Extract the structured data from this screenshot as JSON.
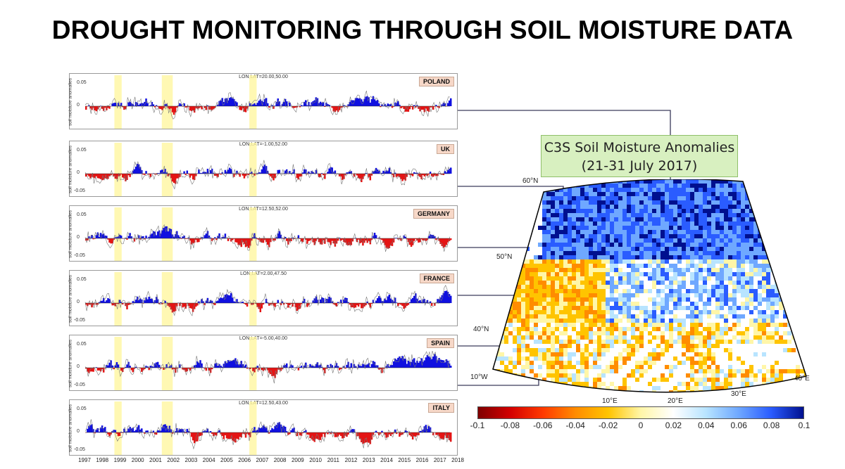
{
  "title": "DROUGHT MONITORING THROUGH SOIL MOISTURE DATA",
  "y_axis_label": "soil moisture anomalies",
  "panels": [
    {
      "country": "POLAND",
      "coords": "LON,LAT=20.00,50.00",
      "yticks": [
        "0.05",
        "0"
      ]
    },
    {
      "country": "UK",
      "coords": "LON,LAT=-1.00,52.00",
      "yticks": [
        "0.05",
        "0",
        "-0.05"
      ]
    },
    {
      "country": "GERMANY",
      "coords": "LON,LAT=12.50,52.00",
      "yticks": [
        "0.05",
        "0",
        "-0.05"
      ]
    },
    {
      "country": "FRANCE",
      "coords": "LON,LAT=2.00,47.50",
      "yticks": [
        "0.05",
        "0",
        "-0.05"
      ]
    },
    {
      "country": "SPAIN",
      "coords": "LON,LAT=-5.00,40.00",
      "yticks": [
        "0.05",
        "0",
        "-0.05"
      ]
    },
    {
      "country": "ITALY",
      "coords": "LON,LAT=12.50,43.00",
      "yticks": [
        "0.05",
        "0",
        "-0.05"
      ]
    }
  ],
  "years": [
    "1997",
    "1998",
    "1999",
    "2000",
    "2001",
    "2002",
    "2003",
    "2004",
    "2005",
    "2006",
    "2007",
    "2008",
    "2009",
    "2010",
    "2011",
    "2012",
    "2013",
    "2014",
    "2015",
    "2016",
    "2017",
    "2018"
  ],
  "map": {
    "title_line1": "C3S Soil Moisture Anomalies",
    "title_line2": "(21-31 July 2017)",
    "lat_labels": [
      "60°N",
      "50°N",
      "40°N"
    ],
    "lon_labels": [
      "10°W",
      "10°E",
      "20°E",
      "30°E",
      "40°E"
    ]
  },
  "colorbar": {
    "ticks": [
      "-0.1",
      "-0.08",
      "-0.06",
      "-0.04",
      "-0.02",
      "0",
      "0.02",
      "0.04",
      "0.06",
      "0.08",
      "0.1"
    ],
    "colors": [
      "#7f0000",
      "#d40000",
      "#ff3a00",
      "#ff8c00",
      "#ffc400",
      "#fff6a8",
      "#ffffff",
      "#b8e4ff",
      "#6fa8ff",
      "#2a5cff",
      "#00108f"
    ]
  }
}
